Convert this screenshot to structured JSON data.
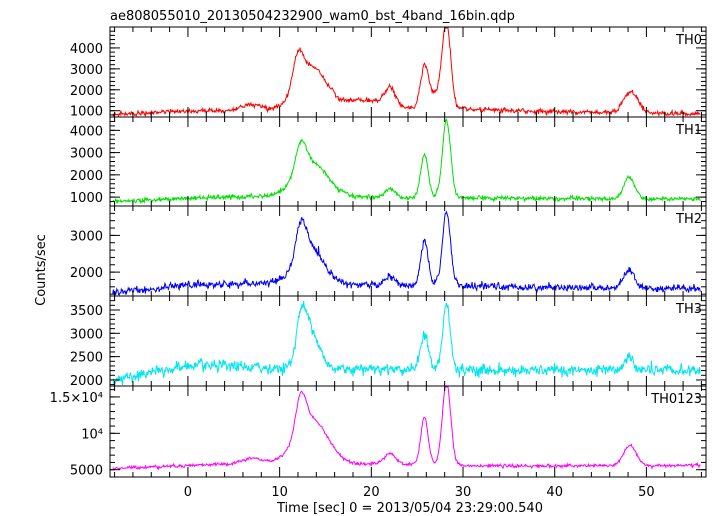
{
  "chart_data": {
    "type": "line",
    "title": "ae808055010_20130504232900_wam0_bst_4band_16bin.qdp",
    "xlabel": "Time [sec] 0 = 2013/05/04 23:29:00.540",
    "ylabel": "Counts/sec",
    "xlim": [
      -8.5,
      56.5
    ],
    "x_ticks": [
      0,
      10,
      20,
      30,
      40,
      50
    ],
    "x_tick_labels": [
      "0",
      "10",
      "20",
      "30",
      "40",
      "50"
    ],
    "grid": false,
    "panels": [
      {
        "name": "TH0",
        "color": "#ff0000",
        "ylim": [
          700,
          5000
        ],
        "ticks": [
          1000,
          2000,
          3000,
          4000
        ],
        "tick_labels": [
          "1000",
          "2000",
          "3000",
          "4000"
        ],
        "base": 850,
        "baseline_pts": [
          [
            -8,
            800
          ],
          [
            0,
            1000
          ],
          [
            10,
            1050
          ],
          [
            20,
            1150
          ],
          [
            35,
            1000
          ],
          [
            56,
            850
          ]
        ],
        "noise": 80,
        "peaks": [
          [
            7,
            250,
            1.0
          ],
          [
            12,
            1500,
            0.55
          ],
          [
            13.5,
            2000,
            1.6
          ],
          [
            19,
            350,
            2.0
          ],
          [
            22,
            900,
            0.6
          ],
          [
            25.8,
            2000,
            0.45
          ],
          [
            28.2,
            3600,
            0.45
          ],
          [
            27.5,
            800,
            0.9
          ],
          [
            48.3,
            1000,
            0.8
          ]
        ]
      },
      {
        "name": "TH1",
        "color": "#00e000",
        "ylim": [
          600,
          4600
        ],
        "ticks": [
          1000,
          2000,
          3000,
          4000
        ],
        "tick_labels": [
          "1000",
          "2000",
          "3000",
          "4000"
        ],
        "base": 900,
        "baseline_pts": [
          [
            -8,
            800
          ],
          [
            0,
            950
          ],
          [
            10,
            1050
          ],
          [
            20,
            1000
          ],
          [
            35,
            950
          ],
          [
            56,
            900
          ]
        ],
        "noise": 70,
        "peaks": [
          [
            12.3,
            1300,
            0.6
          ],
          [
            13.5,
            1500,
            1.7
          ],
          [
            22,
            400,
            0.5
          ],
          [
            25.8,
            2000,
            0.4
          ],
          [
            28.2,
            3500,
            0.45
          ],
          [
            48.1,
            1000,
            0.6
          ]
        ]
      },
      {
        "name": "TH2",
        "color": "#0000ff",
        "ylim": [
          1350,
          3800
        ],
        "ticks": [
          2000,
          3000
        ],
        "tick_labels": [
          "2000",
          "3000"
        ],
        "base": 1600,
        "baseline_pts": [
          [
            -8,
            1450
          ],
          [
            0,
            1650
          ],
          [
            10,
            1700
          ],
          [
            20,
            1650
          ],
          [
            35,
            1600
          ],
          [
            56,
            1550
          ]
        ],
        "noise": 70,
        "peaks": [
          [
            12.3,
            900,
            0.55
          ],
          [
            13.3,
            1000,
            1.5
          ],
          [
            22,
            250,
            0.5
          ],
          [
            25.8,
            1200,
            0.4
          ],
          [
            28.2,
            2000,
            0.45
          ],
          [
            48.1,
            500,
            0.6
          ]
        ]
      },
      {
        "name": "TH3",
        "color": "#00e5ee",
        "ylim": [
          1870,
          3800
        ],
        "ticks": [
          2000,
          2500,
          3000,
          3500
        ],
        "tick_labels": [
          "2000",
          "2500",
          "3000",
          "3500"
        ],
        "base": 2250,
        "baseline_pts": [
          [
            -8,
            2000
          ],
          [
            0,
            2300
          ],
          [
            10,
            2250
          ],
          [
            20,
            2250
          ],
          [
            35,
            2200
          ],
          [
            56,
            2200
          ]
        ],
        "noise": 90,
        "peaks": [
          [
            12.3,
            800,
            0.5
          ],
          [
            13.3,
            900,
            0.9
          ],
          [
            25.8,
            800,
            0.4
          ],
          [
            28.2,
            1400,
            0.4
          ],
          [
            48.1,
            300,
            0.5
          ]
        ]
      },
      {
        "name": "TH0123",
        "color": "#ff00ff",
        "ylim": [
          4000,
          16500
        ],
        "ticks": [
          5000,
          10000,
          15000
        ],
        "tick_labels": [
          "5000",
          "10⁴",
          "1.5×10⁴"
        ],
        "base": 5500,
        "baseline_pts": [
          [
            -8,
            5200
          ],
          [
            0,
            5600
          ],
          [
            10,
            6000
          ],
          [
            20,
            5800
          ],
          [
            35,
            5500
          ],
          [
            56,
            5600
          ]
        ],
        "noise": 150,
        "peaks": [
          [
            7,
            700,
            1.0
          ],
          [
            12.3,
            5000,
            0.55
          ],
          [
            13.5,
            6000,
            1.7
          ],
          [
            22,
            1500,
            0.6
          ],
          [
            25.8,
            6500,
            0.4
          ],
          [
            28.2,
            11500,
            0.45
          ],
          [
            48.2,
            2700,
            0.7
          ]
        ]
      }
    ]
  }
}
